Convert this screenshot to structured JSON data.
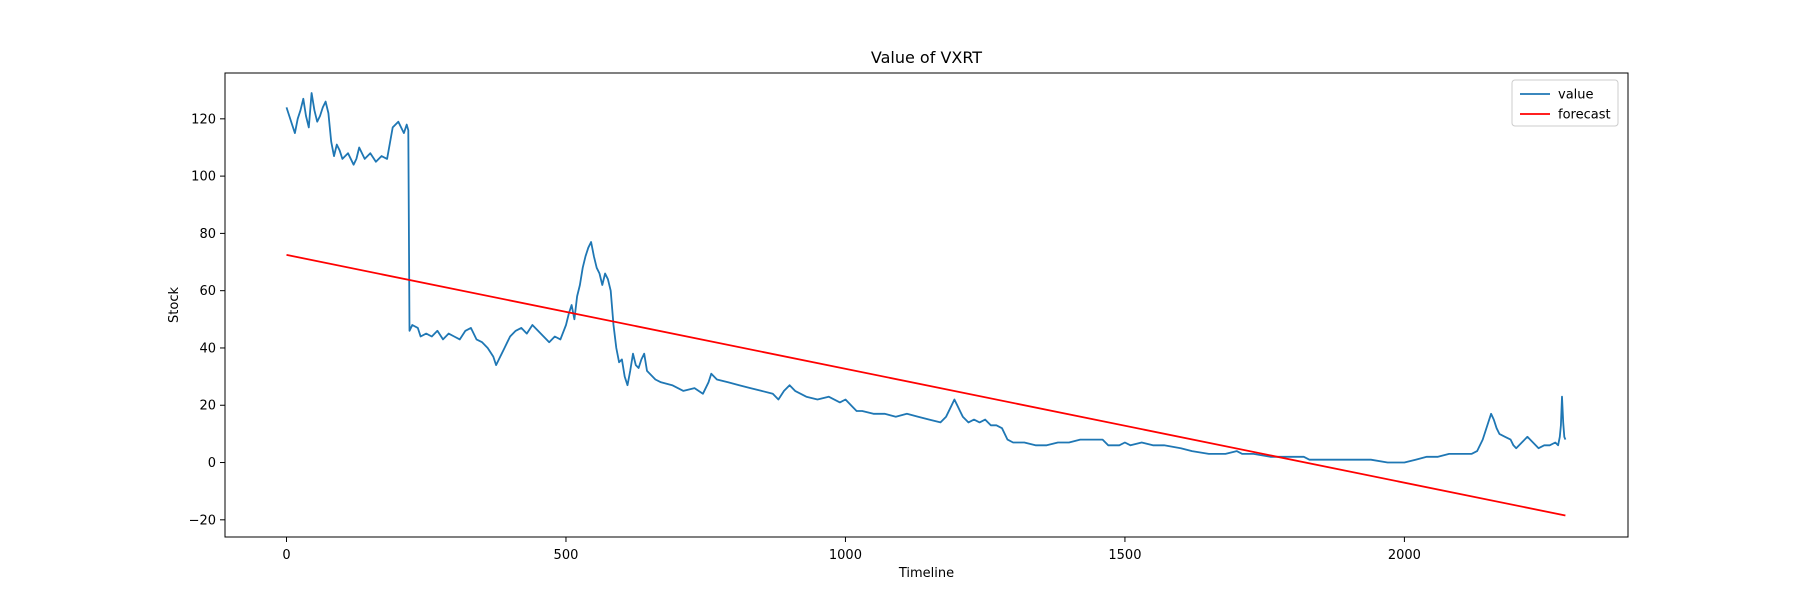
{
  "chart_data": {
    "type": "line",
    "title": "Value of VXRT",
    "xlabel": "Timeline",
    "ylabel": "Stock",
    "xlim": [
      -110,
      2400
    ],
    "ylim": [
      -26,
      136
    ],
    "xticks": [
      0,
      500,
      1000,
      1500,
      2000
    ],
    "yticks": [
      -20,
      0,
      20,
      40,
      60,
      80,
      100,
      120
    ],
    "grid": false,
    "legend_position": "top-right",
    "series": [
      {
        "name": "value",
        "color": "#1f77b4",
        "points": [
          [
            0,
            124
          ],
          [
            5,
            121
          ],
          [
            10,
            118
          ],
          [
            15,
            115
          ],
          [
            20,
            120
          ],
          [
            25,
            123
          ],
          [
            30,
            127
          ],
          [
            35,
            121
          ],
          [
            40,
            117
          ],
          [
            45,
            129
          ],
          [
            50,
            123
          ],
          [
            55,
            119
          ],
          [
            60,
            121
          ],
          [
            65,
            124
          ],
          [
            70,
            126
          ],
          [
            75,
            122
          ],
          [
            80,
            112
          ],
          [
            85,
            107
          ],
          [
            90,
            111
          ],
          [
            95,
            109
          ],
          [
            100,
            106
          ],
          [
            110,
            108
          ],
          [
            120,
            104
          ],
          [
            125,
            106
          ],
          [
            130,
            110
          ],
          [
            140,
            106
          ],
          [
            150,
            108
          ],
          [
            160,
            105
          ],
          [
            170,
            107
          ],
          [
            180,
            106
          ],
          [
            190,
            117
          ],
          [
            200,
            119
          ],
          [
            205,
            117
          ],
          [
            210,
            115
          ],
          [
            215,
            118
          ],
          [
            218,
            116
          ],
          [
            220,
            46
          ],
          [
            225,
            48
          ],
          [
            235,
            47
          ],
          [
            240,
            44
          ],
          [
            250,
            45
          ],
          [
            260,
            44
          ],
          [
            270,
            46
          ],
          [
            280,
            43
          ],
          [
            290,
            45
          ],
          [
            300,
            44
          ],
          [
            310,
            43
          ],
          [
            320,
            46
          ],
          [
            330,
            47
          ],
          [
            340,
            43
          ],
          [
            350,
            42
          ],
          [
            360,
            40
          ],
          [
            370,
            37
          ],
          [
            375,
            34
          ],
          [
            380,
            36
          ],
          [
            385,
            38
          ],
          [
            390,
            40
          ],
          [
            395,
            42
          ],
          [
            400,
            44
          ],
          [
            410,
            46
          ],
          [
            420,
            47
          ],
          [
            430,
            45
          ],
          [
            440,
            48
          ],
          [
            450,
            46
          ],
          [
            460,
            44
          ],
          [
            470,
            42
          ],
          [
            480,
            44
          ],
          [
            490,
            43
          ],
          [
            500,
            48
          ],
          [
            505,
            52
          ],
          [
            510,
            55
          ],
          [
            515,
            50
          ],
          [
            520,
            58
          ],
          [
            525,
            62
          ],
          [
            530,
            68
          ],
          [
            535,
            72
          ],
          [
            540,
            75
          ],
          [
            545,
            77
          ],
          [
            550,
            72
          ],
          [
            555,
            68
          ],
          [
            560,
            66
          ],
          [
            565,
            62
          ],
          [
            570,
            66
          ],
          [
            575,
            64
          ],
          [
            580,
            60
          ],
          [
            585,
            48
          ],
          [
            590,
            40
          ],
          [
            595,
            35
          ],
          [
            600,
            36
          ],
          [
            605,
            30
          ],
          [
            610,
            27
          ],
          [
            615,
            32
          ],
          [
            620,
            38
          ],
          [
            625,
            34
          ],
          [
            630,
            33
          ],
          [
            635,
            36
          ],
          [
            640,
            38
          ],
          [
            645,
            32
          ],
          [
            650,
            31
          ],
          [
            660,
            29
          ],
          [
            670,
            28
          ],
          [
            690,
            27
          ],
          [
            710,
            25
          ],
          [
            730,
            26
          ],
          [
            745,
            24
          ],
          [
            755,
            28
          ],
          [
            760,
            31
          ],
          [
            770,
            29
          ],
          [
            790,
            28
          ],
          [
            810,
            27
          ],
          [
            830,
            26
          ],
          [
            850,
            25
          ],
          [
            870,
            24
          ],
          [
            880,
            22
          ],
          [
            890,
            25
          ],
          [
            900,
            27
          ],
          [
            910,
            25
          ],
          [
            930,
            23
          ],
          [
            950,
            22
          ],
          [
            970,
            23
          ],
          [
            990,
            21
          ],
          [
            1000,
            22
          ],
          [
            1010,
            20
          ],
          [
            1020,
            18
          ],
          [
            1030,
            18
          ],
          [
            1050,
            17
          ],
          [
            1070,
            17
          ],
          [
            1090,
            16
          ],
          [
            1110,
            17
          ],
          [
            1130,
            16
          ],
          [
            1150,
            15
          ],
          [
            1170,
            14
          ],
          [
            1180,
            16
          ],
          [
            1190,
            20
          ],
          [
            1195,
            22
          ],
          [
            1200,
            20
          ],
          [
            1205,
            18
          ],
          [
            1210,
            16
          ],
          [
            1220,
            14
          ],
          [
            1230,
            15
          ],
          [
            1240,
            14
          ],
          [
            1250,
            15
          ],
          [
            1260,
            13
          ],
          [
            1270,
            13
          ],
          [
            1280,
            12
          ],
          [
            1290,
            8
          ],
          [
            1300,
            7
          ],
          [
            1320,
            7
          ],
          [
            1340,
            6
          ],
          [
            1360,
            6
          ],
          [
            1380,
            7
          ],
          [
            1400,
            7
          ],
          [
            1420,
            8
          ],
          [
            1440,
            8
          ],
          [
            1460,
            8
          ],
          [
            1470,
            6
          ],
          [
            1490,
            6
          ],
          [
            1500,
            7
          ],
          [
            1510,
            6
          ],
          [
            1530,
            7
          ],
          [
            1550,
            6
          ],
          [
            1570,
            6
          ],
          [
            1600,
            5
          ],
          [
            1620,
            4
          ],
          [
            1650,
            3
          ],
          [
            1680,
            3
          ],
          [
            1700,
            4
          ],
          [
            1710,
            3
          ],
          [
            1730,
            3
          ],
          [
            1760,
            2
          ],
          [
            1790,
            2
          ],
          [
            1820,
            2
          ],
          [
            1830,
            1
          ],
          [
            1850,
            1
          ],
          [
            1880,
            1
          ],
          [
            1910,
            1
          ],
          [
            1940,
            1
          ],
          [
            1970,
            0
          ],
          [
            2000,
            0
          ],
          [
            2020,
            1
          ],
          [
            2040,
            2
          ],
          [
            2060,
            2
          ],
          [
            2080,
            3
          ],
          [
            2100,
            3
          ],
          [
            2120,
            3
          ],
          [
            2130,
            4
          ],
          [
            2140,
            8
          ],
          [
            2150,
            14
          ],
          [
            2155,
            17
          ],
          [
            2160,
            15
          ],
          [
            2165,
            12
          ],
          [
            2170,
            10
          ],
          [
            2180,
            9
          ],
          [
            2190,
            8
          ],
          [
            2195,
            6
          ],
          [
            2200,
            5
          ],
          [
            2210,
            7
          ],
          [
            2220,
            9
          ],
          [
            2230,
            7
          ],
          [
            2240,
            5
          ],
          [
            2250,
            6
          ],
          [
            2260,
            6
          ],
          [
            2270,
            7
          ],
          [
            2275,
            6
          ],
          [
            2278,
            9
          ],
          [
            2280,
            13
          ],
          [
            2282,
            23
          ],
          [
            2284,
            14
          ],
          [
            2286,
            9
          ],
          [
            2288,
            8
          ]
        ]
      },
      {
        "name": "forecast",
        "color": "#ff0000",
        "points": [
          [
            0,
            72.5
          ],
          [
            2288,
            -18.5
          ]
        ]
      }
    ]
  }
}
